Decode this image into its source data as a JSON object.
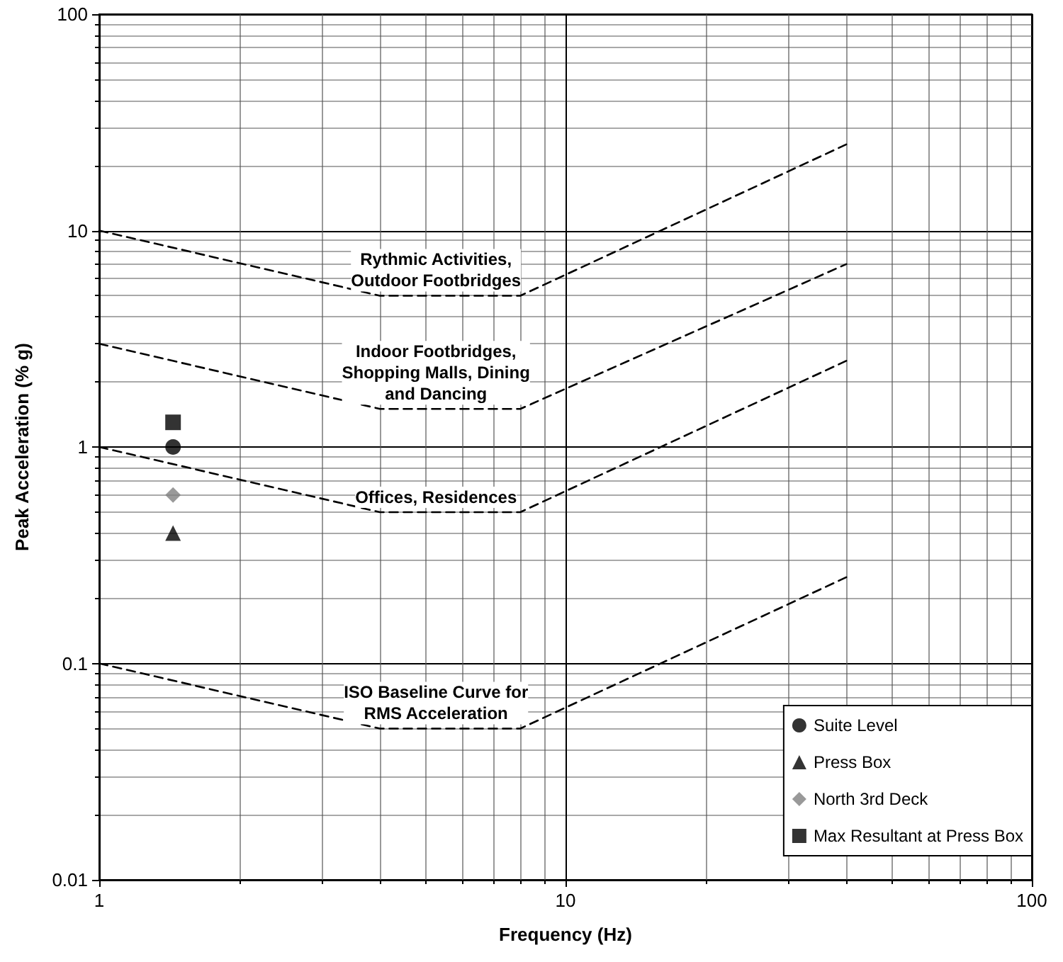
{
  "chart_data": {
    "type": "line",
    "xlabel": "Frequency (Hz)",
    "ylabel": "Peak Acceleration (% g)",
    "log": "xy",
    "grid": true,
    "legend": "bottom right",
    "line_style": "dashed",
    "marker": "none",
    "xlim": [
      1,
      100
    ],
    "xticks": [
      1,
      10,
      100
    ],
    "ylim": [
      0.01,
      100
    ],
    "yticks": [
      0.01,
      0.1,
      1,
      10,
      100
    ],
    "series": [
      {
        "color": "#000000",
        "x": [
          1,
          4,
          8,
          40
        ],
        "values": [
          10,
          5,
          5,
          25
        ]
      },
      {
        "color": "#000000",
        "x": [
          1,
          4,
          8,
          40
        ],
        "values": [
          3,
          1.5,
          1.5,
          7
        ]
      },
      {
        "color": "#000000",
        "x": [
          1,
          4,
          8,
          40
        ],
        "values": [
          1,
          0.5,
          0.5,
          2.5
        ]
      },
      {
        "color": "#000000",
        "x": [
          1,
          4,
          8,
          40
        ],
        "values": [
          0.1,
          0.05,
          0.05,
          0.25
        ]
      },
      {
        "type": "scatter",
        "name": "Suite Level",
        "color": "#000000",
        "marker": "circle",
        "x": [
          1.44
        ],
        "values": [
          1
        ]
      },
      {
        "type": "scatter",
        "name": "Press Box",
        "color": "#000000",
        "marker": "triangle",
        "x": [
          1.44
        ],
        "values": [
          0.4
        ]
      },
      {
        "type": "scatter",
        "name": "North 3rd Deck",
        "color": "#808080",
        "marker": "diamond",
        "x": [
          1.44
        ],
        "values": [
          0.6
        ]
      },
      {
        "type": "scatter",
        "name": "Max Resultant at Press Box",
        "color": "#000000",
        "marker": "square",
        "x": [
          1.44
        ],
        "values": [
          1.3
        ]
      }
    ],
    "annotations": [
      "Rythmic Activities,\nOutdoor Footbridges",
      "Indoor Footbridges,\nShopping Malls, Dining\nand Dancing",
      "Offices, Residences",
      "ISO Baseline Curve for\nRMS Acceleration"
    ]
  }
}
